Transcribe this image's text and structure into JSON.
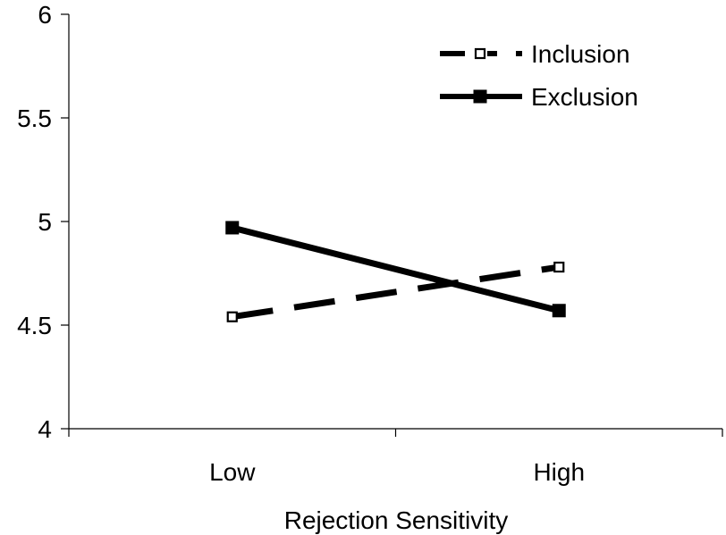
{
  "chart_data": {
    "type": "line",
    "xlabel": "Rejection Sensitivity",
    "ylabel": "",
    "categories": [
      "Low",
      "High"
    ],
    "ylim": [
      4,
      6
    ],
    "y_ticks": [
      "4",
      "4.5",
      "5",
      "5.5",
      "6"
    ],
    "grid": false,
    "legend_position": "top-right",
    "series": [
      {
        "name": "Inclusion",
        "values": [
          4.54,
          4.78
        ],
        "line_style": "dashed",
        "marker": "hollow-square",
        "color": "#000000"
      },
      {
        "name": "Exclusion",
        "values": [
          4.97,
          4.57
        ],
        "line_style": "solid",
        "marker": "filled-square",
        "color": "#000000"
      }
    ]
  }
}
